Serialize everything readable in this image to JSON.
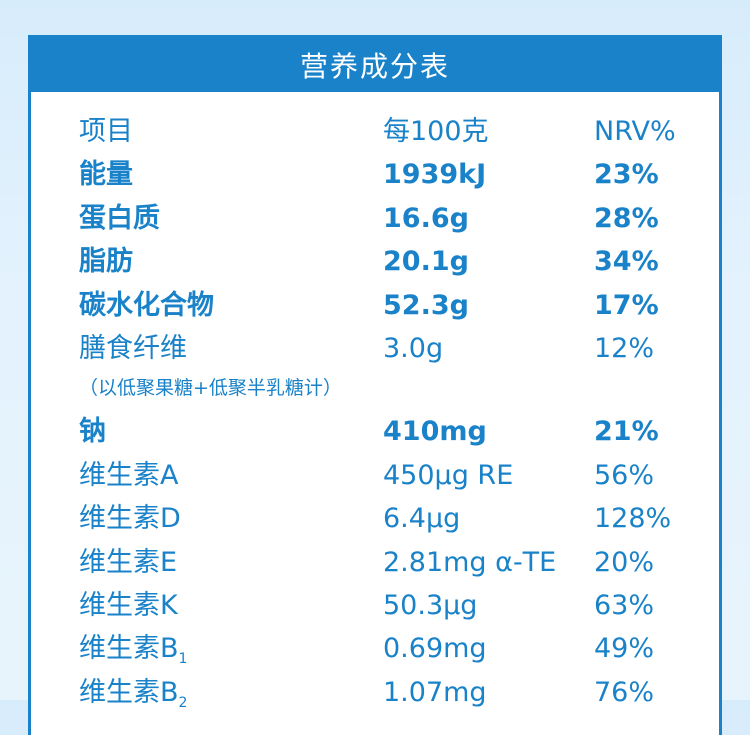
{
  "header": {
    "title": "营养成分表"
  },
  "columns": {
    "item": "项目",
    "per100": "每100克",
    "nrv": "NRV%"
  },
  "rows_top": [
    {
      "name": "能量",
      "amount": "1939kJ",
      "nrv": "23%",
      "bold": true
    },
    {
      "name": "蛋白质",
      "amount": "16.6g",
      "nrv": "28%",
      "bold": true
    },
    {
      "name": "脂肪",
      "amount": "20.1g",
      "nrv": "34%",
      "bold": true
    },
    {
      "name": "碳水化合物",
      "amount": "52.3g",
      "nrv": "17%",
      "bold": true
    },
    {
      "name": "膳食纤维",
      "amount": "3.0g",
      "nrv": "12%",
      "bold": false
    }
  ],
  "fiber_note": "（以低聚果糖+低聚半乳糖计）",
  "rows_bottom": [
    {
      "name": "钠",
      "amount": "410mg",
      "nrv": "21%",
      "bold": true
    },
    {
      "name": "维生素A",
      "amount": "450μg RE",
      "nrv": "56%",
      "bold": false
    },
    {
      "name": "维生素D",
      "amount": "6.4μg",
      "nrv": "128%",
      "bold": false
    },
    {
      "name": "维生素E",
      "amount": "2.81mg α-TE",
      "nrv": "20%",
      "bold": false
    },
    {
      "name": "维生素K",
      "amount": "50.3μg",
      "nrv": "63%",
      "bold": false
    },
    {
      "name": "维生素B",
      "sub": "1",
      "amount": "0.69mg",
      "nrv": "49%",
      "bold": false
    },
    {
      "name": "维生素B",
      "sub": "2",
      "amount": "1.07mg",
      "nrv": "76%",
      "bold": false
    }
  ],
  "colors": {
    "accent": "#1a82c8",
    "background": "#e3f2fd"
  }
}
